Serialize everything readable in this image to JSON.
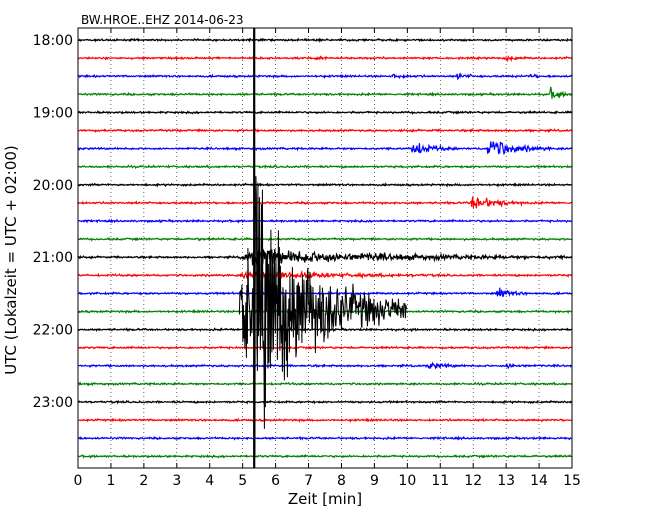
{
  "chart_data": {
    "type": "line",
    "title": "BW.HROE..EHZ 2014-06-23",
    "xlabel": "Zeit  [min]",
    "ylabel": "UTC (Lokalzeit = UTC + 02:00)",
    "xlim": [
      0,
      15
    ],
    "x_ticks": [
      "0",
      "1",
      "2",
      "3",
      "4",
      "5",
      "6",
      "7",
      "8",
      "9",
      "10",
      "11",
      "12",
      "13",
      "14",
      "15"
    ],
    "y_ticks": [
      "18:00",
      "19:00",
      "20:00",
      "21:00",
      "22:00",
      "23:00"
    ],
    "grid": true,
    "trace_colors": [
      "#000000",
      "#ff0000",
      "#0000ff",
      "#008000"
    ],
    "traces": [
      {
        "start": "18:00",
        "events": []
      },
      {
        "start": "18:15",
        "events": [
          {
            "t": 7.2,
            "amp": 0.25,
            "dur": 0.5
          },
          {
            "t": 13.0,
            "amp": 0.25,
            "dur": 0.6
          }
        ]
      },
      {
        "start": "18:30",
        "events": [
          {
            "t": 9.5,
            "amp": 0.3,
            "dur": 1.0
          },
          {
            "t": 11.5,
            "amp": 0.3,
            "dur": 0.8
          },
          {
            "t": 13.7,
            "amp": 0.25,
            "dur": 0.5
          }
        ]
      },
      {
        "start": "18:45",
        "events": [
          {
            "t": 14.3,
            "amp": 0.6,
            "dur": 0.8
          }
        ]
      },
      {
        "start": "19:00",
        "events": []
      },
      {
        "start": "19:15",
        "events": []
      },
      {
        "start": "19:30",
        "events": [
          {
            "t": 10.1,
            "amp": 0.9,
            "dur": 1.4
          },
          {
            "t": 12.4,
            "amp": 1.2,
            "dur": 2.0
          }
        ]
      },
      {
        "start": "19:45",
        "events": []
      },
      {
        "start": "20:00",
        "events": []
      },
      {
        "start": "20:15",
        "events": [
          {
            "t": 11.9,
            "amp": 0.9,
            "dur": 1.8
          }
        ]
      },
      {
        "start": "20:30",
        "events": []
      },
      {
        "start": "20:45",
        "events": [
          {
            "t": 3.6,
            "amp": 0.2,
            "dur": 0.2
          }
        ]
      },
      {
        "start": "21:00",
        "events": [
          {
            "t": 4.9,
            "amp": 1.0,
            "dur": 10.0
          }
        ]
      },
      {
        "start": "21:15",
        "events": [
          {
            "t": 4.9,
            "amp": 0.5,
            "dur": 6.0
          }
        ]
      },
      {
        "start": "21:30",
        "events": [
          {
            "t": 12.7,
            "amp": 0.6,
            "dur": 1.0
          }
        ]
      },
      {
        "start": "21:45",
        "events": []
      },
      {
        "start": "22:00",
        "events": []
      },
      {
        "start": "22:15",
        "events": []
      },
      {
        "start": "22:30",
        "events": [
          {
            "t": 10.6,
            "amp": 0.35,
            "dur": 1.2
          },
          {
            "t": 13.0,
            "amp": 0.3,
            "dur": 0.8
          }
        ]
      },
      {
        "start": "22:45",
        "events": []
      },
      {
        "start": "23:00",
        "events": []
      },
      {
        "start": "23:15",
        "events": []
      },
      {
        "start": "23:30",
        "events": []
      },
      {
        "start": "23:45",
        "events": []
      }
    ],
    "large_event": {
      "start_min": 4.9,
      "peak_min": 5.35,
      "end_min": 9.0,
      "from_trace": 9,
      "to_trace": 22
    }
  }
}
